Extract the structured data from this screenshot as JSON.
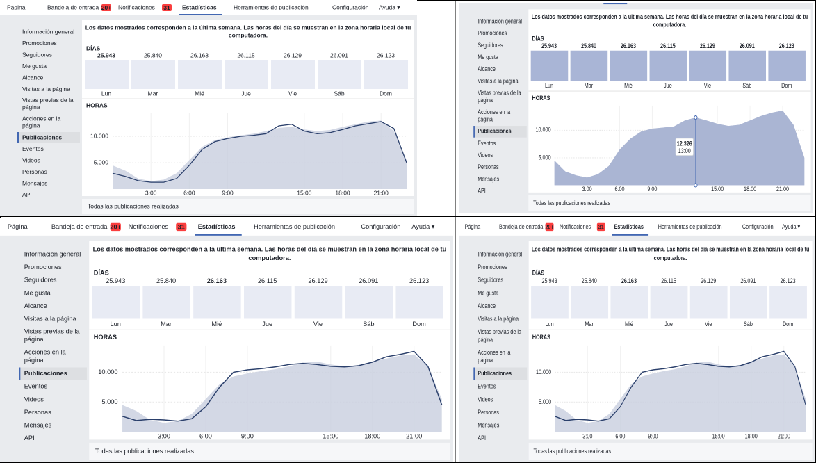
{
  "nav": {
    "items": [
      "Página",
      "Bandeja de entrada",
      "Notificaciones",
      "Estadísticas",
      "Herramientas de publicación",
      "Configuración",
      "Ayuda ▾"
    ],
    "badges": [
      "20+",
      "31"
    ],
    "active": "Estadísticas"
  },
  "sidebar": {
    "items": [
      "Información general",
      "Promociones",
      "Seguidores",
      "Me gusta",
      "Alcance",
      "Visitas a la página",
      "Vistas previas de la página",
      "Acciones en la página",
      "Publicaciones",
      "Eventos",
      "Videos",
      "Personas",
      "Mensajes",
      "API"
    ],
    "active": "Publicaciones"
  },
  "intro": [
    "Los datos mostrados corresponden a la última semana. Las horas del día se muestran en la zona horaria local de tu",
    "computadora."
  ],
  "days": {
    "label": "DÍAS",
    "names": [
      "Lun",
      "Mar",
      "Mié",
      "Jue",
      "Vie",
      "Sáb",
      "Dom"
    ],
    "values": [
      "25.943",
      "25.840",
      "26.163",
      "26.115",
      "26.129",
      "26.091",
      "26.123"
    ]
  },
  "hours": {
    "label": "HORAS",
    "xlim": [
      0,
      23
    ],
    "ylim": [
      0,
      14500
    ],
    "yticks": [
      {
        "value": 5000,
        "label": "5.000"
      },
      {
        "value": 10000,
        "label": "10.000"
      }
    ],
    "xticks": [
      {
        "value": 3,
        "label": "3:00"
      },
      {
        "value": 6,
        "label": "6:00"
      },
      {
        "value": 9,
        "label": "9:00"
      },
      {
        "value": 15,
        "label": "15:00"
      },
      {
        "value": 18,
        "label": "18:00"
      },
      {
        "value": 21,
        "label": "21:00"
      }
    ],
    "area_color": "#c8cedf",
    "line_color": "#2a3f6b"
  },
  "footer": "Todas las publicaciones realizadas",
  "panels": [
    {
      "selected_day": "Lun",
      "area": [
        4500,
        3500,
        2000,
        1500,
        1800,
        3000,
        5500,
        8000,
        9300,
        9800,
        10200,
        10500,
        11000,
        11600,
        11800,
        11300,
        11000,
        11200,
        11800,
        12300,
        12800,
        13000,
        11000,
        5500
      ],
      "line": [
        3000,
        2400,
        1600,
        1300,
        1300,
        2000,
        4500,
        7500,
        9000,
        9600,
        10000,
        10200,
        10500,
        12000,
        12300,
        11000,
        10500,
        10700,
        11300,
        12000,
        12400,
        12800,
        11500,
        5000
      ]
    },
    {
      "highlight_all_days": true,
      "area": [
        4500,
        2500,
        1800,
        1400,
        2000,
        3500,
        6500,
        8500,
        9800,
        10300,
        10500,
        10700,
        11800,
        12326,
        11800,
        11200,
        10800,
        11000,
        11800,
        12600,
        13200,
        13600,
        11000,
        5000
      ],
      "tooltip": {
        "value": "12.326",
        "time": "13:00"
      }
    },
    {
      "selected_day": "Mié",
      "area": [
        4500,
        3500,
        2000,
        1500,
        1800,
        3000,
        5500,
        8000,
        9300,
        9800,
        10200,
        10500,
        11000,
        11600,
        11800,
        11300,
        11000,
        11200,
        11800,
        12300,
        12800,
        13000,
        11000,
        5500
      ],
      "line": [
        2600,
        1900,
        2100,
        2000,
        1800,
        2200,
        4200,
        7500,
        10000,
        10400,
        10600,
        10900,
        11300,
        11500,
        11300,
        11000,
        10900,
        11100,
        11700,
        12600,
        13000,
        13500,
        11000,
        4500
      ]
    },
    {
      "selected_day": "Mié",
      "area": [
        4500,
        3500,
        2000,
        1500,
        1800,
        3000,
        5500,
        8000,
        9300,
        9800,
        10200,
        10500,
        11000,
        11600,
        11800,
        11300,
        11000,
        11200,
        11800,
        12300,
        12800,
        13000,
        11000,
        5500
      ],
      "line": [
        2600,
        1900,
        2100,
        2000,
        1800,
        2200,
        4200,
        7500,
        10000,
        10400,
        10600,
        10900,
        11300,
        11500,
        11300,
        11000,
        10900,
        11100,
        11700,
        12600,
        13000,
        13500,
        11000,
        4500
      ]
    }
  ]
}
